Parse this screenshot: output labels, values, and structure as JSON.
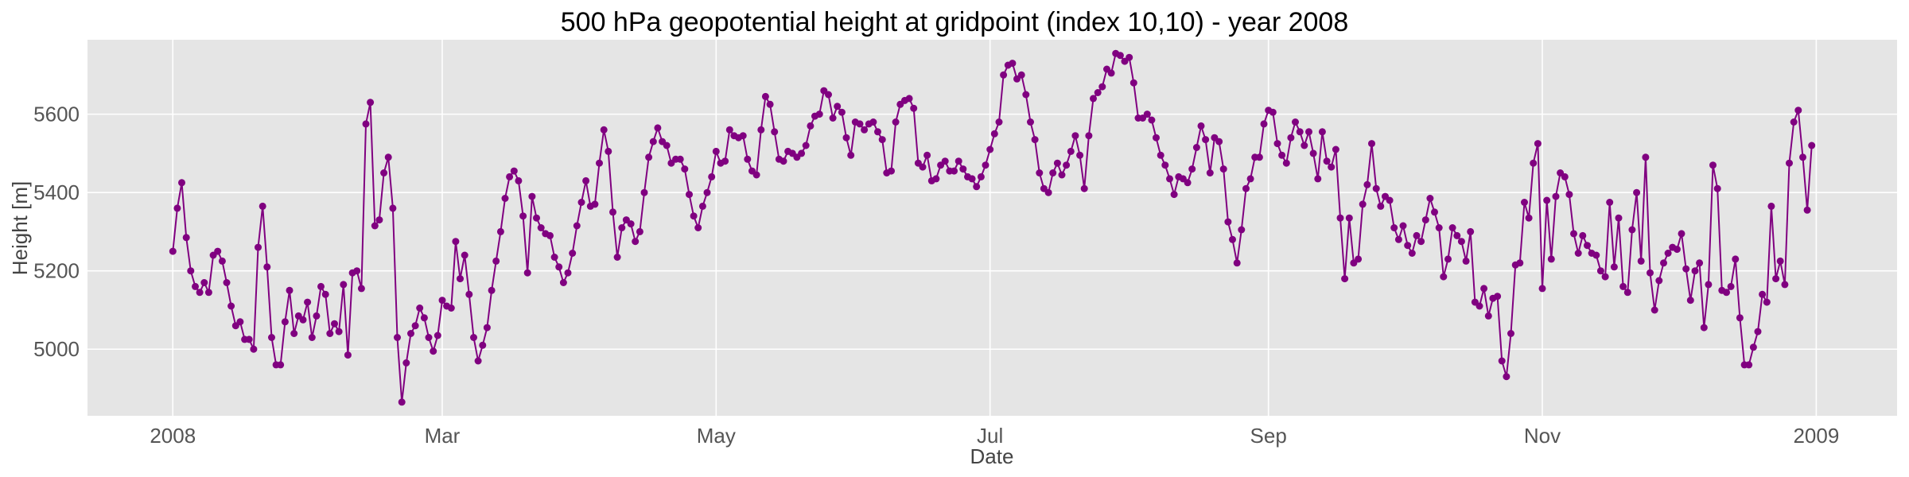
{
  "chart_data": {
    "type": "line",
    "title": "500 hPa geopotential height at gridpoint (index 10,10) - year 2008",
    "xlabel": "Date",
    "ylabel": "Height [m]",
    "x_ticks": [
      "2008",
      "Mar",
      "May",
      "Jul",
      "Sep",
      "Nov",
      "2009"
    ],
    "x_tick_dates": [
      "2008-01-01",
      "2008-03-01",
      "2008-05-01",
      "2008-07-01",
      "2008-09-01",
      "2008-11-01",
      "2009-01-01"
    ],
    "xlim": [
      "2007-12-13",
      "2009-01-19"
    ],
    "y_ticks": [
      5000,
      5200,
      5400,
      5600
    ],
    "ylim": [
      4830,
      5790
    ],
    "grid": true,
    "background": "#e5e5e5",
    "series_color": "#800080",
    "series": [
      {
        "start_date": "2008-01-01",
        "step_days": 1,
        "values": [
          5250,
          5360,
          5425,
          5285,
          5200,
          5160,
          5145,
          5170,
          5145,
          5240,
          5250,
          5225,
          5170,
          5110,
          5060,
          5070,
          5025,
          5025,
          5000,
          5260,
          5365,
          5210,
          5030,
          4960,
          4960,
          5070,
          5150,
          5040,
          5085,
          5075,
          5120,
          5030,
          5085,
          5160,
          5140,
          5040,
          5065,
          5045,
          5165,
          4985,
          5195,
          5200,
          5155,
          5575,
          5630,
          5315,
          5330,
          5450,
          5490,
          5360,
          5030,
          4865,
          4965,
          5040,
          5060,
          5105,
          5080,
          5030,
          4995,
          5035,
          5125,
          5110,
          5105,
          5275,
          5180,
          5240,
          5140,
          5030,
          4970,
          5010,
          5055,
          5150,
          5225,
          5300,
          5385,
          5440,
          5455,
          5430,
          5340,
          5195,
          5390,
          5335,
          5310,
          5295,
          5290,
          5235,
          5210,
          5170,
          5195,
          5245,
          5315,
          5375,
          5430,
          5365,
          5370,
          5475,
          5560,
          5505,
          5350,
          5235,
          5310,
          5330,
          5320,
          5275,
          5300,
          5400,
          5490,
          5530,
          5565,
          5530,
          5520,
          5475,
          5485,
          5485,
          5460,
          5395,
          5340,
          5310,
          5365,
          5400,
          5440,
          5505,
          5475,
          5480,
          5560,
          5545,
          5540,
          5545,
          5485,
          5455,
          5445,
          5560,
          5645,
          5625,
          5555,
          5485,
          5480,
          5505,
          5500,
          5490,
          5500,
          5520,
          5570,
          5595,
          5600,
          5660,
          5650,
          5590,
          5620,
          5605,
          5540,
          5495,
          5580,
          5575,
          5560,
          5575,
          5580,
          5555,
          5535,
          5450,
          5455,
          5580,
          5625,
          5635,
          5640,
          5615,
          5475,
          5465,
          5495,
          5430,
          5435,
          5470,
          5480,
          5455,
          5455,
          5480,
          5460,
          5440,
          5435,
          5415,
          5440,
          5470,
          5510,
          5550,
          5580,
          5700,
          5725,
          5730,
          5690,
          5700,
          5650,
          5580,
          5535,
          5450,
          5410,
          5400,
          5450,
          5475,
          5445,
          5470,
          5505,
          5545,
          5495,
          5410,
          5545,
          5640,
          5655,
          5670,
          5715,
          5705,
          5755,
          5750,
          5735,
          5745,
          5680,
          5590,
          5590,
          5600,
          5585,
          5540,
          5495,
          5470,
          5435,
          5395,
          5440,
          5435,
          5425,
          5460,
          5515,
          5570,
          5535,
          5450,
          5540,
          5530,
          5460,
          5325,
          5280,
          5220,
          5305,
          5410,
          5435,
          5490,
          5490,
          5575,
          5610,
          5605,
          5525,
          5495,
          5475,
          5540,
          5580,
          5555,
          5520,
          5555,
          5500,
          5435,
          5555,
          5480,
          5465,
          5510,
          5335,
          5180,
          5335,
          5220,
          5230,
          5370,
          5420,
          5525,
          5410,
          5365,
          5390,
          5380,
          5310,
          5280,
          5315,
          5265,
          5245,
          5290,
          5275,
          5330,
          5385,
          5350,
          5310,
          5185,
          5230,
          5310,
          5290,
          5275,
          5225,
          5300,
          5120,
          5110,
          5155,
          5085,
          5130,
          5135,
          4970,
          4930,
          5040,
          5215,
          5220,
          5375,
          5335,
          5475,
          5525,
          5155,
          5380,
          5230,
          5390,
          5450,
          5440,
          5395,
          5295,
          5245,
          5290,
          5265,
          5245,
          5240,
          5200,
          5185,
          5375,
          5210,
          5335,
          5160,
          5145,
          5305,
          5400,
          5225,
          5490,
          5195,
          5100,
          5175,
          5220,
          5245,
          5260,
          5255,
          5295,
          5205,
          5125,
          5200,
          5220,
          5055,
          5165,
          5470,
          5410,
          5150,
          5145,
          5160,
          5230,
          5080,
          4960,
          4960,
          5005,
          5045,
          5140,
          5120,
          5365,
          5180,
          5225,
          5165,
          5475,
          5580,
          5610,
          5490,
          5355,
          5520
        ]
      }
    ]
  }
}
